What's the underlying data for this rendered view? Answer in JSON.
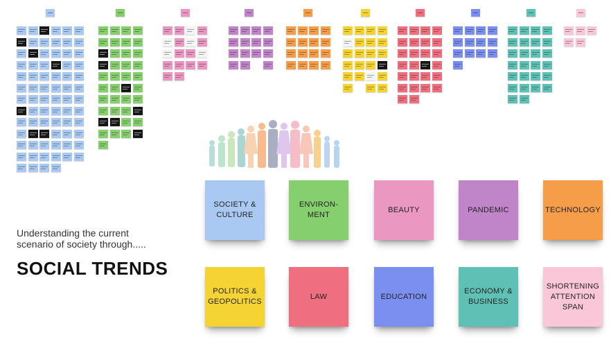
{
  "tagline": "Understanding the current\nscenario of society through.....",
  "title": "SOCIAL TRENDS",
  "categories": [
    {
      "label": "SOCIETY &\nCULTURE",
      "color": "#a9c8f2",
      "key": "society"
    },
    {
      "label": "ENVIRON-\nMENT",
      "color": "#86cf6e",
      "key": "environment"
    },
    {
      "label": "BEAUTY",
      "color": "#ea98c1",
      "key": "beauty"
    },
    {
      "label": "PANDEMIC",
      "color": "#c085c9",
      "key": "pandemic"
    },
    {
      "label": "TECHNOLOGY",
      "color": "#f59d48",
      "key": "technology"
    },
    {
      "label": "POLITICS &\nGEOPOLITICS",
      "color": "#f4d333",
      "key": "politics"
    },
    {
      "label": "LAW",
      "color": "#ef6f7f",
      "key": "law"
    },
    {
      "label": "EDUCATION",
      "color": "#7b8ff0",
      "key": "education"
    },
    {
      "label": "ECONOMY &\nBUSINESS",
      "color": "#5fc1b6",
      "key": "economy"
    },
    {
      "label": "SHORTENING\nATTENTION\nSPAN",
      "color": "#f9c7d7",
      "key": "attention"
    }
  ],
  "board_colors": {
    "dark_note": "#161616",
    "white_note": "#f4f4f4"
  }
}
